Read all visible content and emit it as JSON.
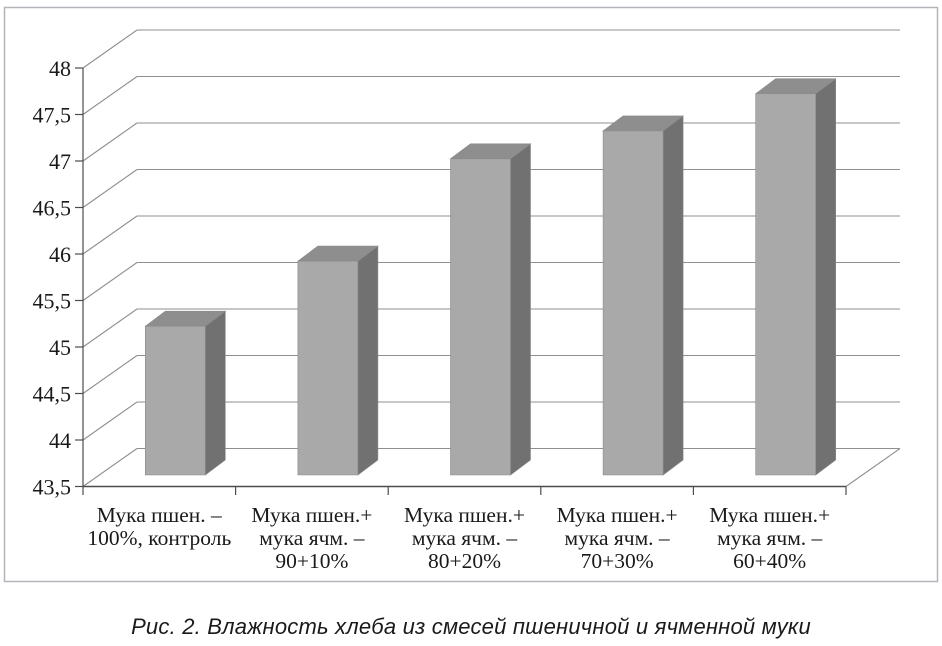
{
  "figure": {
    "caption": "Рис. 2. Влажность хлеба из смесей пшеничной и ячменной муки"
  },
  "chart_data": {
    "type": "bar",
    "projection": "3d-column",
    "title": "",
    "xlabel": "",
    "ylabel": "",
    "categories": [
      [
        "Мука пшен. –",
        "100%, контроль"
      ],
      [
        "Мука пшен.+",
        "мука ячм. –",
        "90+10%"
      ],
      [
        "Мука пшен.+",
        "мука ячм. –",
        "80+20%"
      ],
      [
        "Мука пшен.+",
        "мука ячм. –",
        "70+30%"
      ],
      [
        "Мука пшен.+",
        "мука ячм. –",
        "60+40%"
      ]
    ],
    "values": [
      45.1,
      45.8,
      46.9,
      47.2,
      47.6
    ],
    "ylim": [
      43.5,
      48
    ],
    "ytick_step": 0.5,
    "ytick_labels": [
      "43,5",
      "44",
      "44,5",
      "45",
      "45,5",
      "46",
      "46,5",
      "47",
      "47,5",
      "48"
    ],
    "grid": true,
    "legend": false,
    "colors": {
      "bar_front": "#a9a9a9",
      "bar_side": "#717171",
      "bar_top": "#8e8e8e",
      "bar_edge": "#8a8a8a",
      "gridline": "#8f8f8f",
      "axis": "#4d4d4d",
      "border": "#b2b6ba",
      "text": "#1a1a1a",
      "background": "#ffffff"
    }
  }
}
